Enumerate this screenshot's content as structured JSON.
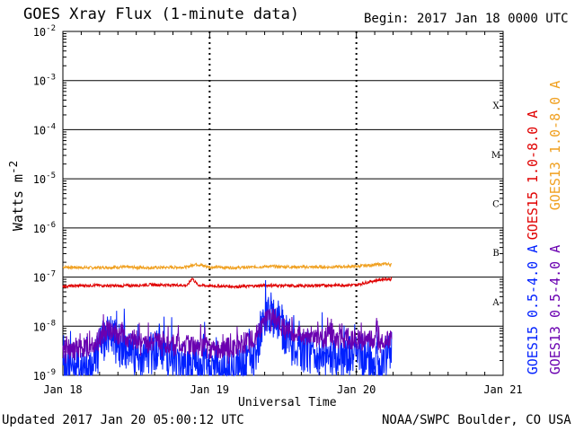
{
  "chart_data": {
    "type": "line",
    "title": "GOES Xray Flux (1-minute data)",
    "begin_label": "Begin:  2017 Jan 18 0000 UTC",
    "xlabel": "Universal Time",
    "ylabel_base": "Watts m",
    "ylabel_exp": "-2",
    "yscale": "log",
    "ylim": [
      1e-09,
      0.01
    ],
    "xlim": [
      0,
      3
    ],
    "x_unit": "days since 2017 Jan 18 0000 UTC",
    "grid": true,
    "x_ticks": [
      {
        "value": 0,
        "label": "Jan 18"
      },
      {
        "value": 1,
        "label": "Jan 19"
      },
      {
        "value": 2,
        "label": "Jan 20"
      },
      {
        "value": 3,
        "label": "Jan 21"
      }
    ],
    "y_ticks": [
      {
        "exp": -9,
        "label": "10",
        "sup": "-9"
      },
      {
        "exp": -8,
        "label": "10",
        "sup": "-8"
      },
      {
        "exp": -7,
        "label": "10",
        "sup": "-7"
      },
      {
        "exp": -6,
        "label": "10",
        "sup": "-6"
      },
      {
        "exp": -5,
        "label": "10",
        "sup": "-5"
      },
      {
        "exp": -4,
        "label": "10",
        "sup": "-4"
      },
      {
        "exp": -3,
        "label": "10",
        "sup": "-3"
      },
      {
        "exp": -2,
        "label": "10",
        "sup": "-2"
      }
    ],
    "flare_classes": [
      {
        "label": "A",
        "exp": -7.5
      },
      {
        "label": "B",
        "exp": -6.5
      },
      {
        "label": "C",
        "exp": -5.5
      },
      {
        "label": "M",
        "exp": -4.5
      },
      {
        "label": "X",
        "exp": -3.5
      }
    ],
    "series": [
      {
        "name": "GOES13 1.0-8.0 A",
        "color": "#f0a020",
        "x": [
          0,
          0.2,
          0.4,
          0.6,
          0.85,
          0.9,
          1.0,
          1.2,
          1.4,
          1.6,
          1.8,
          2.0,
          2.1,
          2.2,
          2.24
        ],
        "y": [
          1.6e-07,
          1.55e-07,
          1.6e-07,
          1.55e-07,
          1.6e-07,
          1.85e-07,
          1.6e-07,
          1.55e-07,
          1.65e-07,
          1.6e-07,
          1.6e-07,
          1.65e-07,
          1.75e-07,
          1.85e-07,
          1.8e-07
        ]
      },
      {
        "name": "GOES15 1.0-8.0 A",
        "color": "#e00000",
        "x": [
          0,
          0.2,
          0.4,
          0.6,
          0.85,
          0.88,
          0.92,
          1.0,
          1.2,
          1.4,
          1.6,
          1.8,
          2.0,
          2.1,
          2.2,
          2.24
        ],
        "y": [
          6.5e-08,
          6.8e-08,
          6.6e-08,
          7e-08,
          6.8e-08,
          9.5e-08,
          6.9e-08,
          6.6e-08,
          6.4e-08,
          6.8e-08,
          6.6e-08,
          6.8e-08,
          6.9e-08,
          8.2e-08,
          9.2e-08,
          9e-08
        ]
      },
      {
        "name": "GOES15 0.5-4.0 A",
        "color": "#0020ff",
        "x": [
          0,
          0.1,
          0.2,
          0.3,
          0.45,
          0.55,
          0.65,
          0.75,
          0.85,
          1.0,
          1.1,
          1.2,
          1.3,
          1.35,
          1.4,
          1.45,
          1.5,
          1.6,
          1.7,
          1.8,
          1.9,
          2.0,
          2.1,
          2.2,
          2.24
        ],
        "y": [
          1.5e-09,
          1.2e-09,
          1.5e-09,
          7e-09,
          3e-09,
          2e-09,
          4e-09,
          2e-09,
          1.5e-09,
          1.3e-09,
          1.2e-09,
          1.3e-09,
          2e-09,
          8e-09,
          1.9e-08,
          1.6e-08,
          8e-09,
          3e-09,
          3e-09,
          2e-09,
          2e-09,
          2.5e-09,
          2e-09,
          2.2e-09,
          3e-09
        ]
      },
      {
        "name": "GOES13 0.5-4.0 A",
        "color": "#6a00b0",
        "x": [
          0,
          0.1,
          0.2,
          0.3,
          0.45,
          0.55,
          0.65,
          0.75,
          0.85,
          1.0,
          1.1,
          1.2,
          1.3,
          1.35,
          1.4,
          1.45,
          1.5,
          1.6,
          1.7,
          1.8,
          1.9,
          2.0,
          2.1,
          2.2,
          2.24
        ],
        "y": [
          3.5e-09,
          3.3e-09,
          4e-09,
          8e-09,
          6e-09,
          5e-09,
          5e-09,
          4e-09,
          4e-09,
          3.8e-09,
          3.5e-09,
          4e-09,
          5.5e-09,
          9e-09,
          1.6e-08,
          1.4e-08,
          9e-09,
          6.5e-09,
          6e-09,
          6e-09,
          5.5e-09,
          5.5e-09,
          5e-09,
          5.5e-09,
          6e-09
        ]
      }
    ],
    "legend": [
      {
        "label": "GOES15 1.0-8.0 A",
        "color": "#e00000"
      },
      {
        "label": "GOES13 1.0-8.0 A",
        "color": "#f0a020"
      },
      {
        "label": "GOES15 0.5-4.0 A",
        "color": "#0020ff"
      },
      {
        "label": "GOES13 0.5-4.0 A",
        "color": "#6a00b0"
      }
    ]
  },
  "footer": {
    "updated": "Updated 2017 Jan 20 05:00:12 UTC",
    "credit": "NOAA/SWPC Boulder, CO USA"
  }
}
